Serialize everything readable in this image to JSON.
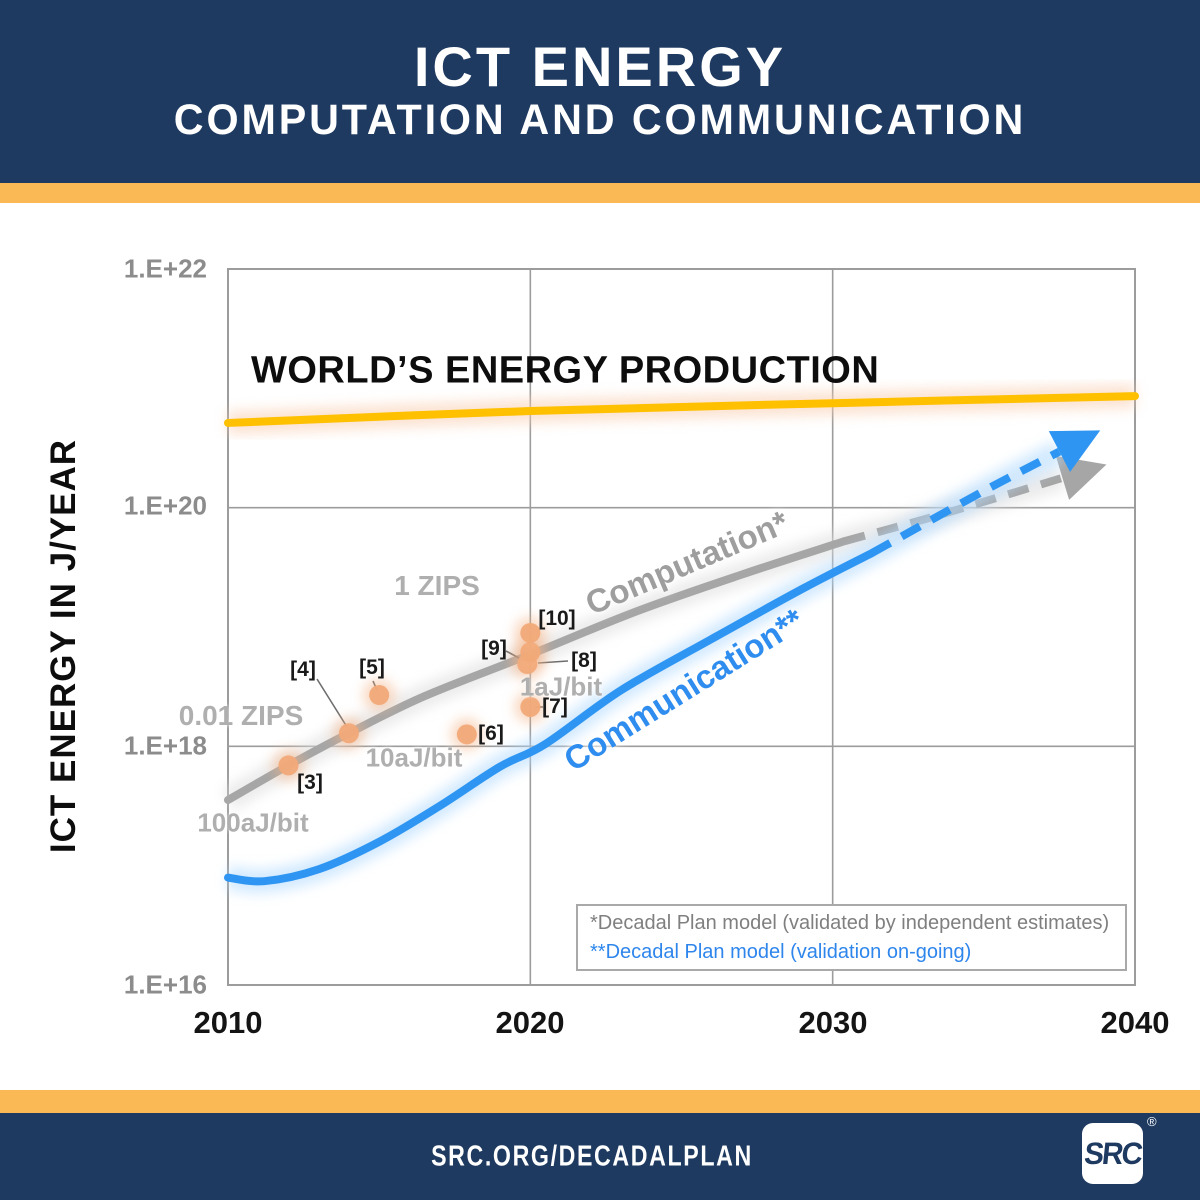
{
  "header": {
    "title": "ICT ENERGY",
    "subtitle": "COMPUTATION AND COMMUNICATION"
  },
  "colors": {
    "navy": "#1E3A60",
    "accent_stripe": "#FBB955",
    "world_line": "#FFC000",
    "world_glow": "#F9CDAF",
    "computation_gray": "#A6A6A6",
    "computation_glow": "#DCDCDC",
    "communication_blue": "#2E96F2",
    "communication_glow": "#AFD9FF",
    "marker_orange": "#F1A978",
    "marker_halo": "#F4B183",
    "grid_gray": "#9C9C9C",
    "tick_gray": "#8C8C8C",
    "legend_gray": "#7F7F7F",
    "legend_blue": "#2E86EC"
  },
  "chart_data": {
    "type": "line",
    "title": "",
    "xlabel": "",
    "ylabel": "ICT ENERGY IN J/YEAR",
    "x_range": [
      2010,
      2040
    ],
    "exp_range": [
      16,
      22
    ],
    "x_ticks": [
      "2010",
      "2020",
      "2030",
      "2040"
    ],
    "y_ticks": [
      "1.E+22",
      "1.E+20",
      "1.E+18",
      "1.E+16"
    ],
    "x_gridlines": [
      2020,
      2030
    ],
    "y_gridlines_exp": [
      20,
      18
    ],
    "grid": true,
    "world_label": "WORLD’S ENERGY PRODUCTION",
    "annotations": [
      "1 ZIPS",
      "0.01 ZIPS",
      "1aJ/bit",
      "10aJ/bit",
      "100aJ/bit"
    ],
    "series": [
      {
        "id": "world",
        "name": "World's energy production",
        "label": "WORLD’S ENERGY PRODUCTION",
        "color": "#FFC000",
        "glow": "#F9CDAF",
        "solid": [
          [
            2010,
            20.71
          ],
          [
            2020,
            20.81
          ],
          [
            2030,
            20.875
          ],
          [
            2040,
            20.935
          ]
        ],
        "arrow": false
      },
      {
        "id": "computation",
        "name": "Computation (Decadal Plan model)",
        "label": "Computation*",
        "color": "#A6A6A6",
        "glow": "#DCDCDC",
        "solid": [
          [
            2010,
            17.55
          ],
          [
            2012,
            17.84
          ],
          [
            2014,
            18.11
          ],
          [
            2016.5,
            18.42
          ],
          [
            2020,
            18.77
          ],
          [
            2023.5,
            19.13
          ],
          [
            2027,
            19.44
          ],
          [
            2030.4,
            19.72
          ]
        ],
        "dashed": [
          [
            2030.4,
            19.72
          ],
          [
            2033,
            19.9
          ],
          [
            2035,
            20.05
          ],
          [
            2037.6,
            20.25
          ]
        ],
        "arrow": true
      },
      {
        "id": "communication",
        "name": "Communication (Decadal Plan model)",
        "label": "Communication**",
        "color": "#2E96F2",
        "glow": "#AFD9FF",
        "solid": [
          [
            2010,
            16.9
          ],
          [
            2011.2,
            16.87
          ],
          [
            2013,
            16.97
          ],
          [
            2015,
            17.2
          ],
          [
            2017,
            17.5
          ],
          [
            2019,
            17.83
          ],
          [
            2020.5,
            18.02
          ],
          [
            2023,
            18.47
          ],
          [
            2026,
            18.9
          ],
          [
            2029,
            19.32
          ],
          [
            2031.3,
            19.62
          ]
        ],
        "dashed": [
          [
            2031.3,
            19.62
          ],
          [
            2035,
            20.14
          ],
          [
            2037.5,
            20.47
          ]
        ],
        "arrow": true
      }
    ],
    "markers": [
      {
        "ref": "[3]",
        "x": 2012.0,
        "exp": 17.84
      },
      {
        "ref": "[4]",
        "x": 2014.0,
        "exp": 18.11
      },
      {
        "ref": "[5]",
        "x": 2015.0,
        "exp": 18.43
      },
      {
        "ref": "[6]",
        "x": 2017.9,
        "exp": 18.1
      },
      {
        "ref": "[7]",
        "x": 2020.0,
        "exp": 18.33
      },
      {
        "ref": "[8]",
        "x": 2019.9,
        "exp": 18.69
      },
      {
        "ref": "[9]",
        "x": 2020.0,
        "exp": 18.79
      },
      {
        "ref": "[10]",
        "x": 2020.0,
        "exp": 18.95
      }
    ],
    "legend": [
      "*Decadal Plan model (validated by independent estimates)",
      "**Decadal Plan model (validation on-going)"
    ],
    "legend_position": "bottom-right"
  },
  "footer": {
    "url": "SRC.ORG/DECADALPLAN",
    "logo_text": "SRC",
    "registered": "®"
  }
}
